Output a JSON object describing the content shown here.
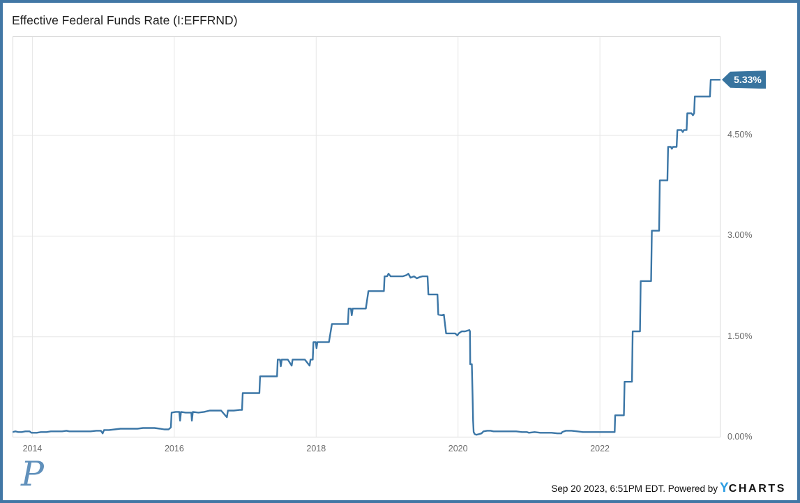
{
  "header": {
    "title": "Effective Federal Funds Rate (I:EFFRND)"
  },
  "footer": {
    "logo_letter": "P",
    "timestamp": "Sep 20 2023, 6:51PM EDT. Powered by",
    "ycharts_y": "Y",
    "ycharts_rest": "CHARTS"
  },
  "colors": {
    "frame": "#4177a5",
    "line": "#3b76a6",
    "callout_bg": "#38749f",
    "grid": "#e7e7e7",
    "plot_border": "#d9d9d9",
    "tick_text": "#6b6b6b",
    "ycharts_blue": "#2d9de2",
    "p_logo_blue": "#6090bb"
  },
  "chart_data": {
    "type": "line",
    "title": "Effective Federal Funds Rate (I:EFFRND)",
    "xlabel": "",
    "ylabel": "",
    "legend": "none",
    "grid": true,
    "x_domain": [
      2013.72,
      2023.7
    ],
    "y_domain": [
      0,
      6.0
    ],
    "x_ticks": [
      {
        "year": 2014,
        "label": "2014"
      },
      {
        "year": 2016,
        "label": "2016"
      },
      {
        "year": 2018,
        "label": "2018"
      },
      {
        "year": 2020,
        "label": "2020"
      },
      {
        "year": 2022,
        "label": "2022"
      }
    ],
    "y_ticks": [
      {
        "value": 0.0,
        "label": "0.00%"
      },
      {
        "value": 1.5,
        "label": "1.50%"
      },
      {
        "value": 3.0,
        "label": "3.00%"
      },
      {
        "value": 4.5,
        "label": "4.50%"
      }
    ],
    "last_value": 5.33,
    "last_value_label": "5.33%",
    "series": [
      {
        "name": "Effective Federal Funds Rate",
        "units": "percent",
        "points": [
          [
            2013.72,
            0.08
          ],
          [
            2013.76,
            0.09
          ],
          [
            2013.8,
            0.08
          ],
          [
            2013.85,
            0.08
          ],
          [
            2013.9,
            0.09
          ],
          [
            2013.96,
            0.09
          ],
          [
            2013.985,
            0.07
          ],
          [
            2014.0,
            0.07
          ],
          [
            2014.06,
            0.07
          ],
          [
            2014.12,
            0.08
          ],
          [
            2014.2,
            0.08
          ],
          [
            2014.26,
            0.09
          ],
          [
            2014.34,
            0.09
          ],
          [
            2014.42,
            0.09
          ],
          [
            2014.48,
            0.1
          ],
          [
            2014.52,
            0.09
          ],
          [
            2014.62,
            0.09
          ],
          [
            2014.72,
            0.09
          ],
          [
            2014.82,
            0.09
          ],
          [
            2014.9,
            0.1
          ],
          [
            2014.965,
            0.1
          ],
          [
            2014.99,
            0.06
          ],
          [
            2015.01,
            0.11
          ],
          [
            2015.08,
            0.11
          ],
          [
            2015.16,
            0.12
          ],
          [
            2015.24,
            0.13
          ],
          [
            2015.32,
            0.13
          ],
          [
            2015.4,
            0.13
          ],
          [
            2015.48,
            0.13
          ],
          [
            2015.56,
            0.14
          ],
          [
            2015.64,
            0.14
          ],
          [
            2015.72,
            0.14
          ],
          [
            2015.8,
            0.13
          ],
          [
            2015.86,
            0.12
          ],
          [
            2015.92,
            0.12
          ],
          [
            2015.952,
            0.15
          ],
          [
            2015.962,
            0.37
          ],
          [
            2016.02,
            0.38
          ],
          [
            2016.07,
            0.38
          ],
          [
            2016.082,
            0.25
          ],
          [
            2016.095,
            0.38
          ],
          [
            2016.16,
            0.37
          ],
          [
            2016.24,
            0.37
          ],
          [
            2016.248,
            0.25
          ],
          [
            2016.262,
            0.38
          ],
          [
            2016.34,
            0.37
          ],
          [
            2016.42,
            0.38
          ],
          [
            2016.5,
            0.4
          ],
          [
            2016.58,
            0.4
          ],
          [
            2016.66,
            0.4
          ],
          [
            2016.742,
            0.3
          ],
          [
            2016.756,
            0.4
          ],
          [
            2016.84,
            0.4
          ],
          [
            2016.92,
            0.41
          ],
          [
            2016.955,
            0.41
          ],
          [
            2016.965,
            0.66
          ],
          [
            2017.05,
            0.66
          ],
          [
            2017.14,
            0.66
          ],
          [
            2017.2,
            0.66
          ],
          [
            2017.21,
            0.91
          ],
          [
            2017.3,
            0.91
          ],
          [
            2017.4,
            0.91
          ],
          [
            2017.448,
            0.91
          ],
          [
            2017.458,
            1.16
          ],
          [
            2017.49,
            1.16
          ],
          [
            2017.502,
            1.06
          ],
          [
            2017.515,
            1.16
          ],
          [
            2017.6,
            1.16
          ],
          [
            2017.655,
            1.07
          ],
          [
            2017.668,
            1.16
          ],
          [
            2017.76,
            1.16
          ],
          [
            2017.84,
            1.16
          ],
          [
            2017.908,
            1.07
          ],
          [
            2017.92,
            1.16
          ],
          [
            2017.952,
            1.16
          ],
          [
            2017.962,
            1.42
          ],
          [
            2017.995,
            1.42
          ],
          [
            2018.005,
            1.33
          ],
          [
            2018.018,
            1.42
          ],
          [
            2018.1,
            1.42
          ],
          [
            2018.18,
            1.42
          ],
          [
            2018.222,
            1.69
          ],
          [
            2018.3,
            1.69
          ],
          [
            2018.38,
            1.69
          ],
          [
            2018.448,
            1.69
          ],
          [
            2018.458,
            1.92
          ],
          [
            2018.49,
            1.92
          ],
          [
            2018.502,
            1.82
          ],
          [
            2018.515,
            1.92
          ],
          [
            2018.6,
            1.92
          ],
          [
            2018.7,
            1.92
          ],
          [
            2018.737,
            2.18
          ],
          [
            2018.82,
            2.18
          ],
          [
            2018.9,
            2.18
          ],
          [
            2018.955,
            2.18
          ],
          [
            2018.965,
            2.4
          ],
          [
            2019.0,
            2.4
          ],
          [
            2019.02,
            2.44
          ],
          [
            2019.05,
            2.4
          ],
          [
            2019.14,
            2.4
          ],
          [
            2019.22,
            2.4
          ],
          [
            2019.275,
            2.42
          ],
          [
            2019.3,
            2.44
          ],
          [
            2019.33,
            2.38
          ],
          [
            2019.38,
            2.4
          ],
          [
            2019.42,
            2.37
          ],
          [
            2019.46,
            2.39
          ],
          [
            2019.5,
            2.4
          ],
          [
            2019.57,
            2.4
          ],
          [
            2019.582,
            2.13
          ],
          [
            2019.64,
            2.13
          ],
          [
            2019.71,
            2.13
          ],
          [
            2019.722,
            1.83
          ],
          [
            2019.77,
            1.82
          ],
          [
            2019.8,
            1.83
          ],
          [
            2019.832,
            1.55
          ],
          [
            2019.9,
            1.55
          ],
          [
            2019.96,
            1.55
          ],
          [
            2019.99,
            1.52
          ],
          [
            2020.01,
            1.55
          ],
          [
            2020.05,
            1.58
          ],
          [
            2020.1,
            1.58
          ],
          [
            2020.16,
            1.6
          ],
          [
            2020.168,
            1.58
          ],
          [
            2020.172,
            1.09
          ],
          [
            2020.195,
            1.09
          ],
          [
            2020.205,
            0.65
          ],
          [
            2020.212,
            0.25
          ],
          [
            2020.22,
            0.08
          ],
          [
            2020.235,
            0.05
          ],
          [
            2020.26,
            0.04
          ],
          [
            2020.3,
            0.05
          ],
          [
            2020.33,
            0.06
          ],
          [
            2020.36,
            0.09
          ],
          [
            2020.41,
            0.1
          ],
          [
            2020.46,
            0.1
          ],
          [
            2020.5,
            0.09
          ],
          [
            2020.58,
            0.09
          ],
          [
            2020.66,
            0.09
          ],
          [
            2020.74,
            0.09
          ],
          [
            2020.82,
            0.09
          ],
          [
            2020.9,
            0.08
          ],
          [
            2020.97,
            0.08
          ],
          [
            2021.0,
            0.07
          ],
          [
            2021.08,
            0.08
          ],
          [
            2021.16,
            0.07
          ],
          [
            2021.24,
            0.07
          ],
          [
            2021.32,
            0.07
          ],
          [
            2021.4,
            0.06
          ],
          [
            2021.455,
            0.06
          ],
          [
            2021.47,
            0.08
          ],
          [
            2021.52,
            0.1
          ],
          [
            2021.6,
            0.1
          ],
          [
            2021.68,
            0.09
          ],
          [
            2021.76,
            0.08
          ],
          [
            2021.84,
            0.08
          ],
          [
            2021.92,
            0.08
          ],
          [
            2022.0,
            0.08
          ],
          [
            2022.08,
            0.08
          ],
          [
            2022.16,
            0.08
          ],
          [
            2022.208,
            0.08
          ],
          [
            2022.215,
            0.33
          ],
          [
            2022.28,
            0.33
          ],
          [
            2022.338,
            0.33
          ],
          [
            2022.348,
            0.83
          ],
          [
            2022.4,
            0.83
          ],
          [
            2022.452,
            0.83
          ],
          [
            2022.462,
            1.58
          ],
          [
            2022.52,
            1.58
          ],
          [
            2022.565,
            1.58
          ],
          [
            2022.575,
            2.33
          ],
          [
            2022.64,
            2.33
          ],
          [
            2022.722,
            2.33
          ],
          [
            2022.732,
            3.08
          ],
          [
            2022.8,
            3.08
          ],
          [
            2022.835,
            3.08
          ],
          [
            2022.845,
            3.83
          ],
          [
            2022.9,
            3.83
          ],
          [
            2022.952,
            3.83
          ],
          [
            2022.962,
            4.33
          ],
          [
            2023.0,
            4.33
          ],
          [
            2023.015,
            4.3
          ],
          [
            2023.03,
            4.33
          ],
          [
            2023.082,
            4.33
          ],
          [
            2023.092,
            4.58
          ],
          [
            2023.15,
            4.58
          ],
          [
            2023.168,
            4.55
          ],
          [
            2023.185,
            4.58
          ],
          [
            2023.222,
            4.58
          ],
          [
            2023.232,
            4.83
          ],
          [
            2023.29,
            4.83
          ],
          [
            2023.312,
            4.8
          ],
          [
            2023.328,
            4.83
          ],
          [
            2023.338,
            5.08
          ],
          [
            2023.42,
            5.08
          ],
          [
            2023.5,
            5.08
          ],
          [
            2023.552,
            5.08
          ],
          [
            2023.562,
            5.33
          ],
          [
            2023.62,
            5.33
          ],
          [
            2023.68,
            5.33
          ],
          [
            2023.7,
            5.33
          ]
        ]
      }
    ]
  }
}
